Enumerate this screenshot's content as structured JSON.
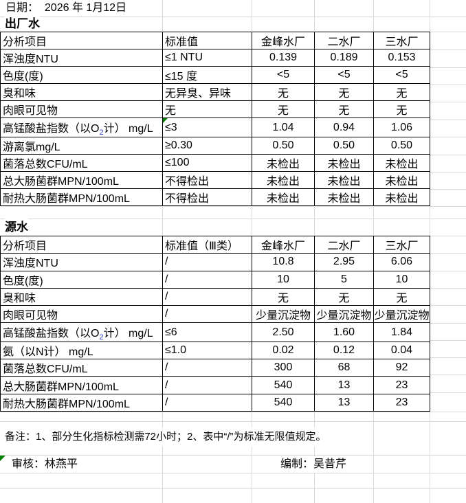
{
  "colors": {
    "background": "#ffffff",
    "gridline": "#d9d9d9",
    "table_border": "#000000",
    "text": "#000000",
    "subscript_blue": "#3344cc",
    "marker_green": "#008000"
  },
  "header": {
    "date_label": "日期：  2026 年 1月12日"
  },
  "tables": [
    {
      "title": "出厂水",
      "columns": [
        "分析项目",
        "标准值",
        "金峰水厂",
        "二水厂",
        "三水厂"
      ],
      "rows": [
        {
          "item": "浑浊度NTU",
          "standard": "≤1  NTU",
          "values": [
            "0.139",
            "0.189",
            "0.153"
          ]
        },
        {
          "item": "色度(度)",
          "standard": "≤15 度",
          "values": [
            "<5",
            "<5",
            "<5"
          ]
        },
        {
          "item": "臭和味",
          "standard": "无异臭、异味",
          "values": [
            "无",
            "无",
            "无"
          ]
        },
        {
          "item": "肉眼可见物",
          "standard": "无",
          "values": [
            "无",
            "无",
            "无"
          ]
        },
        {
          "item_parts": {
            "pre": "高锰酸盐指数（以O",
            "sub": "2",
            "post": "计） mg/L"
          },
          "standard": "≤3",
          "standard_marker": true,
          "values": [
            "1.04",
            "0.94",
            "1.06"
          ]
        },
        {
          "item": "游离氯mg/L",
          "standard": "≥0.30",
          "values": [
            "0.50",
            "0.50",
            "0.50"
          ]
        },
        {
          "item": "菌落总数CFU/mL",
          "standard": "≤100",
          "values": [
            "未检出",
            "未检出",
            "未检出"
          ]
        },
        {
          "item": "总大肠菌群MPN/100mL",
          "standard": "不得检出",
          "values": [
            "未检出",
            "未检出",
            "未检出"
          ]
        },
        {
          "item": "耐热大肠菌群MPN/100mL",
          "standard": "不得检出",
          "values": [
            "未检出",
            "未检出",
            "未检出"
          ]
        }
      ]
    },
    {
      "title": "源水",
      "columns": [
        "分析项目",
        "标准值（Ⅲ类）",
        "金峰水厂",
        "二水厂",
        "三水厂"
      ],
      "rows": [
        {
          "item": "浑浊度NTU",
          "standard": "/",
          "values": [
            "10.8",
            "2.95",
            "6.06"
          ]
        },
        {
          "item": "色度(度)",
          "standard": "/",
          "values": [
            "10",
            "5",
            "10"
          ]
        },
        {
          "item": "臭和味",
          "standard": "/",
          "values": [
            "无",
            "无",
            "无"
          ]
        },
        {
          "item": "肉眼可见物",
          "standard": "/",
          "values": [
            "少量沉淀物",
            "少量沉淀物",
            "少量沉淀物"
          ]
        },
        {
          "item_parts": {
            "pre": "高锰酸盐指数（以O",
            "sub": "2",
            "post": "计） mg/L"
          },
          "standard": "≤6",
          "values": [
            "2.50",
            "1.60",
            "1.84"
          ]
        },
        {
          "item": "氨（以N计） mg/L",
          "standard": "≤1.0",
          "values": [
            "0.02",
            "0.12",
            "0.04"
          ]
        },
        {
          "item": "菌落总数CFU/mL",
          "standard": "/",
          "values": [
            "300",
            "68",
            "92"
          ]
        },
        {
          "item": "总大肠菌群MPN/100mL",
          "standard": "/",
          "values": [
            "540",
            "13",
            "23"
          ]
        },
        {
          "item": "耐热大肠菌群MPN/100mL",
          "standard": "/",
          "values": [
            "540",
            "13",
            "23"
          ]
        }
      ]
    }
  ],
  "footer": {
    "note": "备注：1、部分生化指标检测需72小时；2、表中“/”为标准无限值规定。",
    "reviewer_label": "审核：林燕平",
    "preparer_label": "编制：吴昔芹"
  }
}
